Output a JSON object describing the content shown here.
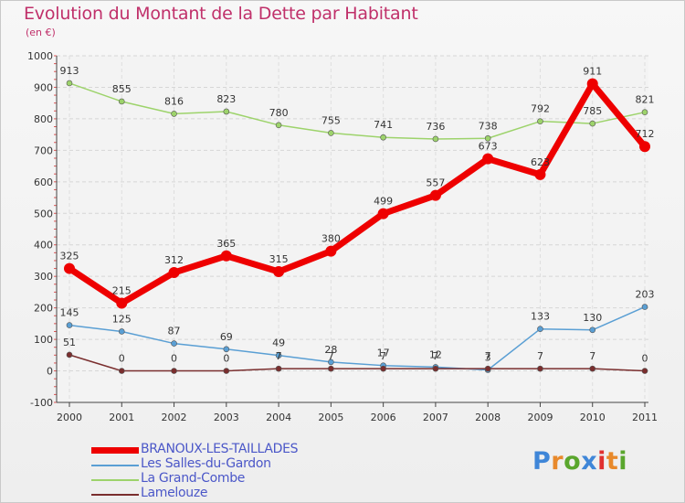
{
  "title": "Evolution du Montant de la Dette par Habitant",
  "subtitle": "(en €)",
  "brand": "Proxiti",
  "colors": {
    "title": "#c0306a",
    "legend_text": "#4b57c8",
    "brand_letters": [
      "#3f86d8",
      "#e8892b",
      "#5aa62d",
      "#3f86d8",
      "#e03030",
      "#e8892b",
      "#5aa62d"
    ]
  },
  "chart_data": {
    "type": "line",
    "title": "Evolution du Montant de la Dette par Habitant",
    "subtitle": "(en €)",
    "xlabel": "",
    "ylabel": "",
    "x": [
      "2000",
      "2001",
      "2002",
      "2003",
      "2004",
      "2005",
      "2006",
      "2007",
      "2008",
      "2009",
      "2010",
      "2011"
    ],
    "ylim": [
      -100,
      1000
    ],
    "yticks": [
      -100,
      0,
      100,
      200,
      300,
      400,
      500,
      600,
      700,
      800,
      900,
      1000
    ],
    "grid": true,
    "legend_position": "bottom-left",
    "series": [
      {
        "name": "BRANOUX-LES-TAILLADES",
        "color": "#ee0000",
        "width": 7,
        "values": [
          325,
          215,
          312,
          365,
          315,
          380,
          499,
          557,
          673,
          623,
          911,
          712
        ],
        "labels": [
          "325",
          "215",
          "312",
          "365",
          "315",
          "380",
          "499",
          "557",
          "673",
          "623",
          "911",
          "712"
        ]
      },
      {
        "name": "Les Salles-du-Gardon",
        "color": "#5a9fd4",
        "width": 1.5,
        "values": [
          145,
          125,
          87,
          69,
          49,
          28,
          17,
          12,
          3,
          133,
          130,
          203
        ],
        "labels": [
          "145",
          "125",
          "87",
          "69",
          "49",
          "28",
          "17",
          "12",
          "3",
          "133",
          "130",
          "203"
        ]
      },
      {
        "name": "La Grand-Combe",
        "color": "#9dd36b",
        "width": 1.5,
        "values": [
          913,
          855,
          816,
          823,
          780,
          755,
          741,
          736,
          738,
          792,
          785,
          821
        ],
        "labels": [
          "913",
          "855",
          "816",
          "823",
          "780",
          "755",
          "741",
          "736",
          "738",
          "792",
          "785",
          "821"
        ]
      },
      {
        "name": "Lamelouze",
        "color": "#7a2e2e",
        "width": 1.5,
        "values": [
          51,
          0,
          0,
          0,
          7,
          7,
          7,
          7,
          7,
          7,
          7,
          0
        ],
        "labels": [
          "51",
          "0",
          "0",
          "0",
          "7",
          "7",
          "7",
          "7",
          "7",
          "7",
          "7",
          "0"
        ]
      }
    ]
  }
}
